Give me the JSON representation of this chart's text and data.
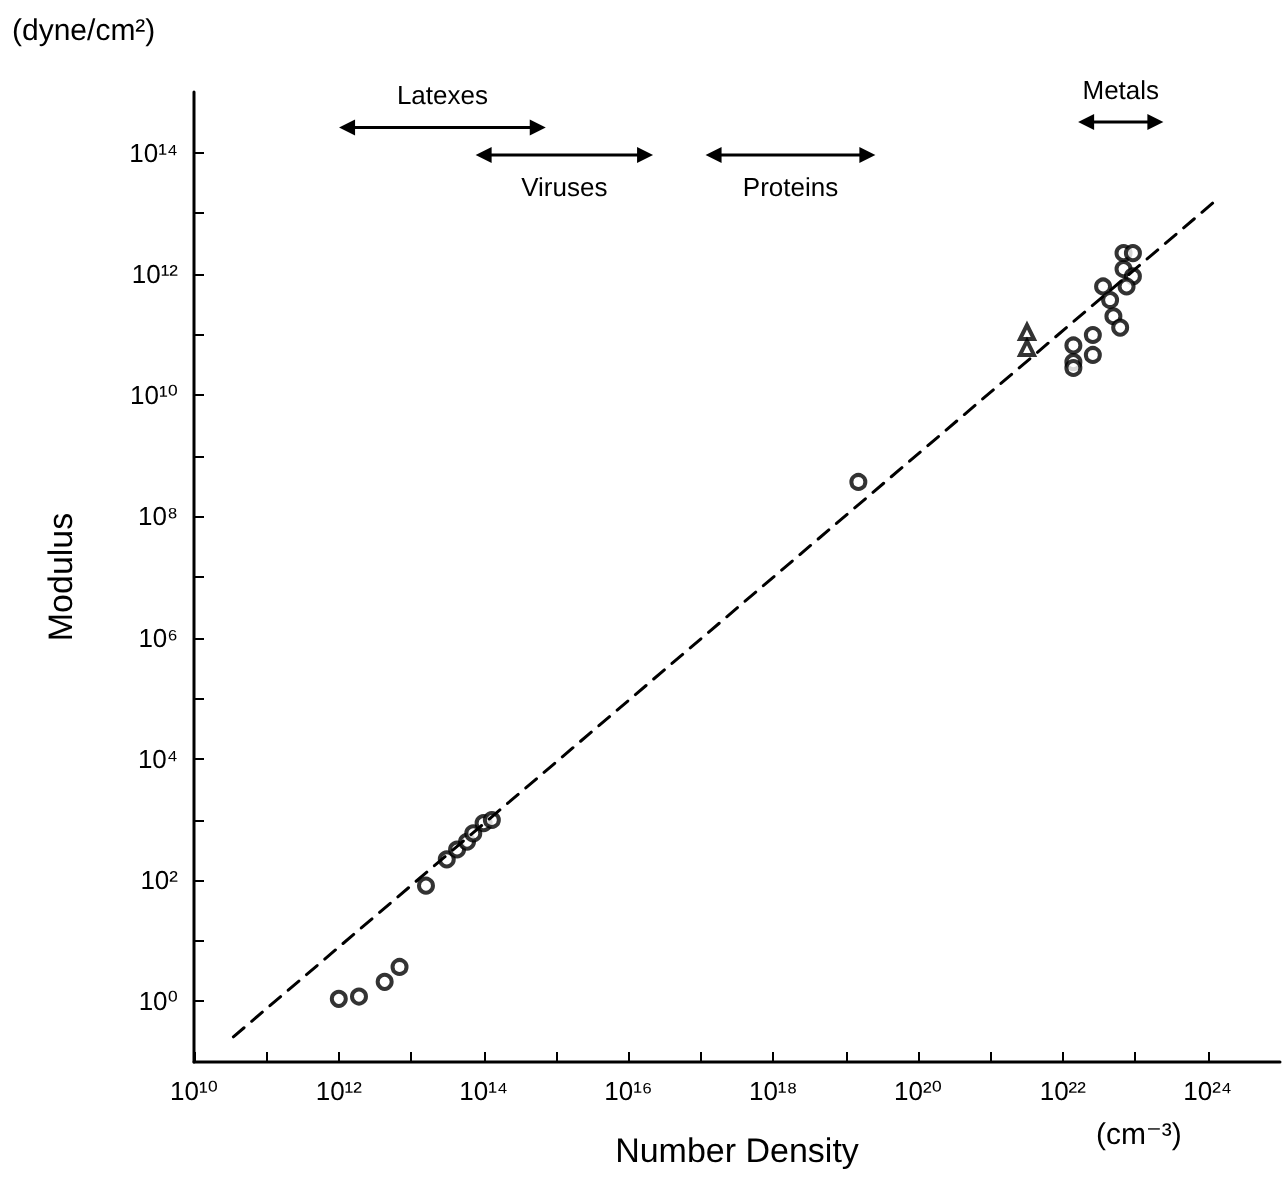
{
  "chart_data": {
    "type": "scatter",
    "xlabel": "Number Density",
    "ylabel": "Modulus",
    "annotations": [
      "(dyne/cm²)",
      "(cm⁻³)"
    ],
    "log": "xy",
    "grid": false,
    "xlim": [
      10000000000.0,
      1e+25
    ],
    "ylim": [
      0.1,
      1000000000000000.0
    ],
    "xticks": [
      {
        "value": 10000000000.0,
        "label": "10¹⁰"
      },
      {
        "value": 100000000000.0,
        "label": null
      },
      {
        "value": 1000000000000.0,
        "label": "10¹²"
      },
      {
        "value": 10000000000000.0,
        "label": null
      },
      {
        "value": 100000000000000.0,
        "label": "10¹⁴"
      },
      {
        "value": 1000000000000000.0,
        "label": null
      },
      {
        "value": 1e+16,
        "label": "10¹⁶"
      },
      {
        "value": 1e+17,
        "label": null
      },
      {
        "value": 1e+18,
        "label": "10¹⁸"
      },
      {
        "value": 1e+19,
        "label": null
      },
      {
        "value": 1e+20,
        "label": "10²⁰"
      },
      {
        "value": 1e+21,
        "label": null
      },
      {
        "value": 1e+22,
        "label": "10²²"
      },
      {
        "value": 1e+23,
        "label": null
      },
      {
        "value": 1e+24,
        "label": "10²⁴"
      }
    ],
    "yticks": [
      {
        "value": 1,
        "label": "10⁰"
      },
      {
        "value": 10,
        "label": null
      },
      {
        "value": 100,
        "label": "10²"
      },
      {
        "value": 1000,
        "label": null
      },
      {
        "value": 10000,
        "label": "10⁴"
      },
      {
        "value": 100000.0,
        "label": null
      },
      {
        "value": 1000000.0,
        "label": "10⁶"
      },
      {
        "value": 10000000.0,
        "label": null
      },
      {
        "value": 100000000.0,
        "label": "10⁸"
      },
      {
        "value": 1000000000.0,
        "label": null
      },
      {
        "value": 10000000000.0,
        "label": "10¹⁰"
      },
      {
        "value": 100000000000.0,
        "label": null
      },
      {
        "value": 1000000000000.0,
        "label": "10¹²"
      },
      {
        "value": 10000000000000.0,
        "label": null
      },
      {
        "value": 100000000000000.0,
        "label": "10¹⁴"
      }
    ],
    "series": [
      {
        "marker": "circle",
        "color": "#000000",
        "x": [
          1000000000000.0,
          1900000000000.0,
          4300000000000.0,
          6900000000000.0,
          1.5e+19
        ],
        "values": [
          1.1,
          1.2,
          2.1,
          3.7,
          370000000.0
        ]
      },
      {
        "marker": "circle",
        "color": "#000000",
        "x": [
          16000000000000.0,
          31000000000000.0,
          43000000000000.0,
          59000000000000.0,
          72000000000000.0,
          100000000000000.0,
          130000000000000.0,
          1.4e+22,
          1.4e+22,
          1.4e+22,
          2.6e+22,
          2.6e+22,
          3.6e+22,
          4.5e+22,
          5e+22,
          6.2e+22,
          6.9e+22,
          9.3e+22,
          6.9e+22,
          9.3e+22,
          7.6e+22
        ],
        "values": [
          81,
          220,
          320,
          430,
          590,
          870,
          980,
          66000000000.0,
          35000000000.0,
          28000000000.0,
          98000000000.0,
          46000000000.0,
          620000000000.0,
          370000000000.0,
          200000000000.0,
          130000000000.0,
          2200000000000.0,
          2200000000000.0,
          1200000000000.0,
          910000000000.0,
          620000000000.0
        ]
      },
      {
        "marker": "triangle",
        "color": "#000000",
        "x": [
          3.2e+21,
          3.2e+21
        ],
        "values": [
          110000000000.0,
          60000000000.0
        ]
      },
      {
        "type": "line",
        "marker": "none",
        "line_style": "dashed",
        "color": "#000000",
        "x": [
          35000000000.0,
          1.2e+24
        ],
        "values": [
          0.26,
          15000000000000.0
        ]
      },
      {
        "type": "line",
        "name": "Latexes",
        "marker": "triangle",
        "line_style": "solid",
        "color": "#000000",
        "x": [
          1300000000000.0,
          560000000000000.0
        ],
        "values": [
          260000000000000.0,
          260000000000000.0
        ]
      },
      {
        "type": "line",
        "name": "Viruses",
        "marker": "triangle",
        "line_style": "solid",
        "color": "#000000",
        "x": [
          100000000000000.0,
          1.7e+16
        ],
        "values": [
          91000000000000.0,
          91000000000000.0
        ]
      },
      {
        "type": "line",
        "name": "Proteins",
        "marker": "triangle",
        "line_style": "solid",
        "color": "#000000",
        "x": [
          1.5e+17,
          2e+19
        ],
        "values": [
          91000000000000.0,
          91000000000000.0
        ]
      },
      {
        "type": "line",
        "name": "Metals",
        "marker": "triangle",
        "line_style": "solid",
        "color": "#000000",
        "x": [
          2.1e+22,
          1.9e+23
        ],
        "values": [
          320000000000000.0,
          320000000000000.0
        ]
      }
    ]
  }
}
